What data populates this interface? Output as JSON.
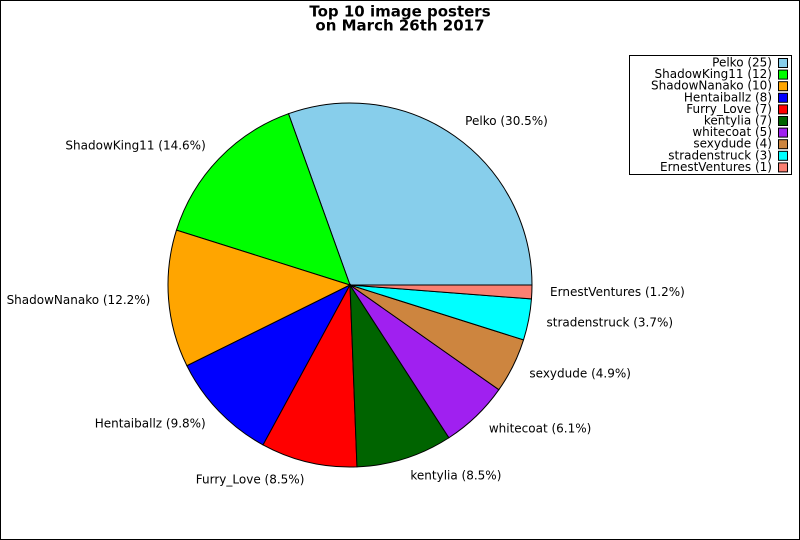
{
  "chart_data": {
    "type": "pie",
    "title": [
      "Top 10 image posters",
      "on March 26th 2017"
    ],
    "slices": [
      {
        "value": 25,
        "label": "Pelko (30.5%)",
        "legend": "Pelko (25)",
        "color": "#87ceeb"
      },
      {
        "value": 12,
        "label": "ShadowKing11 (14.6%)",
        "legend": "ShadowKing11 (12)",
        "color": "#00ff00"
      },
      {
        "value": 10,
        "label": "ShadowNanako (12.2%)",
        "legend": "ShadowNanako (10)",
        "color": "#ffa500"
      },
      {
        "value": 8,
        "label": "Hentaiballz (9.8%)",
        "legend": "Hentaiballz (8)",
        "color": "#0000ff"
      },
      {
        "value": 7,
        "label": "Furry_Love (8.5%)",
        "legend": "Furry_Love (7)",
        "color": "#ff0000"
      },
      {
        "value": 7,
        "label": "kentylia (8.5%)",
        "legend": "kentylia (7)",
        "color": "#006400"
      },
      {
        "value": 5,
        "label": "whitecoat (6.1%)",
        "legend": "whitecoat (5)",
        "color": "#a020f0"
      },
      {
        "value": 4,
        "label": "sexydude (4.9%)",
        "legend": "sexydude (4)",
        "color": "#cd853f"
      },
      {
        "value": 3,
        "label": "stradenstruck (3.7%)",
        "legend": "stradenstruck (3)",
        "color": "#00ffff"
      },
      {
        "value": 1,
        "label": "ErnestVentures (1.2%)",
        "legend": "ErnestVentures (1)",
        "color": "#fa8072"
      }
    ],
    "legend_position": "upper right"
  }
}
